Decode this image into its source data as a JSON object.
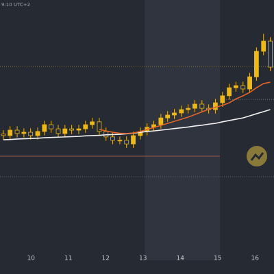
{
  "chart_data": {
    "type": "candlestick",
    "subtitle": "9:10 UTC+2",
    "x": [
      9.26,
      9.44,
      9.63,
      9.81,
      9.99,
      10.18,
      10.36,
      10.54,
      10.73,
      10.91,
      11.09,
      11.28,
      11.46,
      11.64,
      11.83,
      12.01,
      12.19,
      12.38,
      12.56,
      12.74,
      12.93,
      13.11,
      13.29,
      13.48,
      13.66,
      13.84,
      14.03,
      14.21,
      14.39,
      14.58,
      14.76,
      14.94,
      15.13,
      15.31,
      15.49,
      15.68,
      15.86,
      16.04,
      16.23,
      16.41
    ],
    "open": [
      48.5,
      47.9,
      50,
      48.7,
      49.2,
      47.9,
      49.5,
      52.1,
      50.5,
      48.7,
      50.5,
      50,
      50.5,
      52.1,
      53.2,
      49.5,
      47.4,
      46.1,
      46.1,
      44.7,
      47.9,
      49.5,
      51.1,
      52.1,
      54.7,
      55.8,
      56.6,
      57.9,
      58.4,
      60,
      58.4,
      57.9,
      60.5,
      63.2,
      66.3,
      67.1,
      65.8,
      70.5,
      80.3,
      84.2
    ],
    "high": [
      50,
      51.5,
      51.5,
      50.7,
      50.7,
      51,
      53.6,
      53.6,
      52,
      52,
      52,
      52,
      53.6,
      54.7,
      54.7,
      51,
      48.9,
      47.6,
      47.6,
      49.4,
      51,
      52.6,
      53.6,
      56.2,
      57.3,
      58.1,
      59.4,
      59.9,
      61.5,
      61.5,
      59.9,
      62,
      64.7,
      67.8,
      68.6,
      68.6,
      72,
      81.8,
      87,
      85.7
    ],
    "low": [
      46.4,
      46.4,
      47.2,
      47.2,
      46.4,
      46.4,
      48,
      49,
      47.2,
      47.2,
      48.5,
      48.5,
      49,
      50.6,
      48,
      45.9,
      44.6,
      44.6,
      43.2,
      43.2,
      46.4,
      48,
      49.6,
      50.6,
      53.2,
      54.3,
      55.1,
      56.4,
      56.9,
      56.9,
      56.4,
      56.4,
      59,
      61.7,
      64.8,
      64.3,
      64.3,
      69,
      78.8,
      72.7
    ],
    "close": [
      47.9,
      50,
      48.7,
      49.2,
      47.9,
      49.5,
      52.1,
      50.5,
      48.7,
      50.5,
      50,
      50.5,
      52.1,
      53.2,
      49.5,
      47.4,
      46.1,
      46.1,
      44.7,
      47.9,
      49.5,
      51.1,
      52.1,
      54.7,
      55.8,
      56.6,
      57.9,
      58.4,
      60,
      58.4,
      57.9,
      60.5,
      63.2,
      66.3,
      67.1,
      65.8,
      70.5,
      80.3,
      84.2,
      74.2
    ],
    "color": "#f0b90b",
    "series": [
      {
        "color": "#f2f2f2",
        "values": [
          46.3,
          46.4,
          46.6,
          46.7,
          46.8,
          46.9,
          47.1,
          47.2,
          47.3,
          47.4,
          47.5,
          47.6,
          47.8,
          47.9,
          48,
          48.2,
          48.3,
          48.4,
          48.6,
          48.8,
          49.2,
          49.5,
          49.7,
          50,
          50.3,
          50.6,
          50.9,
          51.2,
          51.6,
          51.9,
          52.3,
          52.6,
          53.2,
          53.7,
          54.2,
          54.7,
          55.5,
          56.3,
          57.1,
          57.9
        ]
      },
      {
        "color": "#e0662b",
        "values": [
          null,
          null,
          null,
          null,
          null,
          null,
          null,
          null,
          null,
          null,
          null,
          null,
          null,
          null,
          50.3,
          49.7,
          49.2,
          48.8,
          48.7,
          48.9,
          49.5,
          50.3,
          51,
          51.8,
          52.6,
          53.4,
          54.2,
          55,
          56,
          57,
          58,
          58.8,
          59.5,
          60.5,
          62,
          63.2,
          64.5,
          66.3,
          67.9,
          68.4
        ]
      }
    ],
    "levels": [
      {
        "value": 74.5,
        "color": "#8a7a3a",
        "dash": true
      },
      {
        "value": 61.8,
        "color": "#777b84",
        "dash": true,
        "from": 15.06
      },
      {
        "value": 40,
        "color": "#9a5a45",
        "dash": false,
        "to": 15.06
      },
      {
        "value": 32.1,
        "color": "#5d616a",
        "dash": true
      }
    ],
    "shade": [
      13.05,
      15.06
    ],
    "xlim": [
      9.17,
      16.51
    ],
    "ylim": [
      0,
      100
    ],
    "xticks": [
      10,
      11,
      12,
      13,
      14,
      15,
      16
    ]
  }
}
